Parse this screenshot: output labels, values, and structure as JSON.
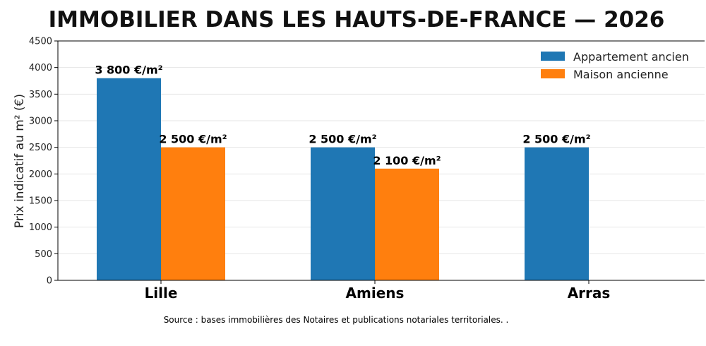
{
  "chart_data": {
    "type": "bar",
    "title": "IMMOBILIER DANS LES HAUTS-DE-FRANCE — 2026",
    "xlabel": "",
    "ylabel": "Prix indicatif au m² (€)",
    "ylim": [
      0,
      4500
    ],
    "yticks": [
      0,
      500,
      1000,
      1500,
      2000,
      2500,
      3000,
      3500,
      4000,
      4500
    ],
    "grid": true,
    "legend_position": "top-right",
    "categories": [
      "Lille",
      "Amiens",
      "Arras"
    ],
    "series": [
      {
        "name": "Appartement ancien",
        "color": "#1f77b4",
        "values": [
          3800,
          2500,
          2500
        ],
        "labels": [
          "3 800 €/m²",
          "2 500 €/m²",
          "2 500 €/m²"
        ]
      },
      {
        "name": "Maison ancienne",
        "color": "#ff7f0e",
        "values": [
          2500,
          2100,
          null
        ],
        "labels": [
          "2 500 €/m²",
          "2 100 €/m²",
          null
        ]
      }
    ],
    "source": "Source : bases immobilières des Notaires et publications notariales territoriales. ."
  }
}
